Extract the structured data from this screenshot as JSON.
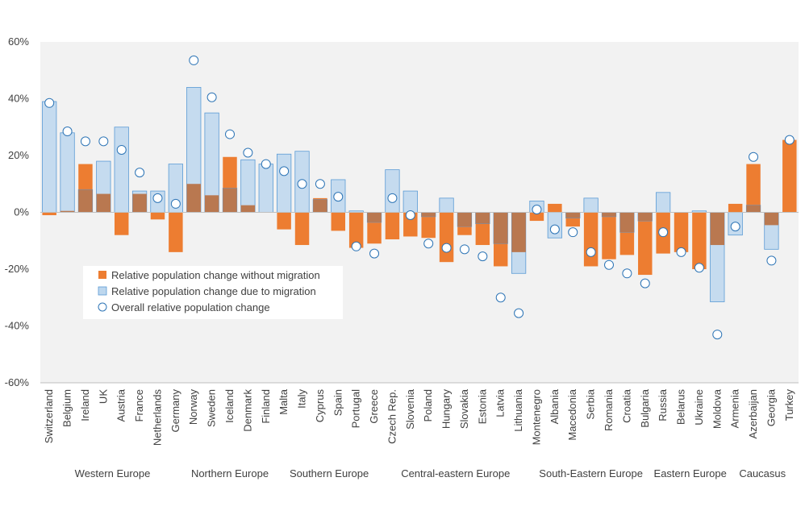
{
  "chart_data": {
    "type": "bar",
    "title": "",
    "xlabel": "",
    "ylabel": "",
    "ylim": [
      -60,
      60
    ],
    "y_ticks": [
      "60%",
      "40%",
      "20%",
      "0%",
      "-20%",
      "-40%",
      "-60%"
    ],
    "y_tick_values": [
      60,
      40,
      20,
      0,
      -20,
      -40,
      -60
    ],
    "categories": [
      "Switzerland",
      "Belgium",
      "Ireland",
      "UK",
      "Austria",
      "France",
      "Netherlands",
      "Germany",
      "Norway",
      "Sweden",
      "Iceland",
      "Denmark",
      "Finland",
      "Malta",
      "Italy",
      "Cyprus",
      "Spain",
      "Portugal",
      "Greece",
      "Czech Rep.",
      "Slovenia",
      "Poland",
      "Hungary",
      "Slovakia",
      "Estonia",
      "Latvia",
      "Lithuania",
      "Montenegro",
      "Albania",
      "Macedonia",
      "Serbia",
      "Romania",
      "Croatia",
      "Bulgaria",
      "Russia",
      "Belarus",
      "Ukraine",
      "Moldova",
      "Armenia",
      "Azerbaijan",
      "Georgia",
      "Turkey"
    ],
    "groups": [
      {
        "name": "Western Europe",
        "count": 8
      },
      {
        "name": "Northern Europe",
        "count": 5
      },
      {
        "name": "Southern Europe",
        "count": 6
      },
      {
        "name": "Central-eastern Europe",
        "count": 8
      },
      {
        "name": "South-Eastern Europe",
        "count": 7
      },
      {
        "name": "Eastern Europe",
        "count": 4
      },
      {
        "name": "Caucasus",
        "count": 4
      }
    ],
    "series": [
      {
        "name": "Relative population change without migration",
        "color": "#ED7D31",
        "values": [
          -1,
          0.5,
          17,
          6.5,
          -8,
          6.5,
          -2.5,
          -14,
          10,
          6,
          19.5,
          2.5,
          0,
          -6,
          -11.5,
          5,
          -6.5,
          -12.5,
          -11,
          -9.5,
          -8.5,
          -9,
          -17.5,
          -8,
          -11.5,
          -19,
          -14,
          -3,
          3,
          -5,
          -19,
          -16.5,
          -15,
          -22,
          -14.5,
          -14,
          -20,
          -11.5,
          3,
          17,
          -4.5,
          25.5
        ]
      },
      {
        "name": "Relative population change due to migration",
        "color": "#BDD7EE",
        "values": [
          39,
          28,
          8,
          18,
          30,
          7.5,
          7.5,
          17,
          44,
          35,
          8.5,
          18.5,
          17,
          20.5,
          21.5,
          4.5,
          11.5,
          0.5,
          -3.5,
          15,
          7.5,
          -1.5,
          5,
          -5,
          -4,
          -11,
          -21.5,
          4,
          -9,
          -2,
          5,
          -1.5,
          -7,
          -3,
          7,
          0,
          0.5,
          -31.5,
          -8,
          2.5,
          -13,
          0
        ]
      },
      {
        "name": "Overall relative population change",
        "color": "#2E75B6",
        "values": [
          38.5,
          28.5,
          25,
          25,
          22,
          14,
          5,
          3,
          53.5,
          40.5,
          27.5,
          21,
          17,
          14.5,
          10,
          10,
          5.5,
          -12,
          -14.5,
          5,
          -1,
          -11,
          -12.5,
          -13,
          -15.5,
          -30,
          -35.5,
          1,
          -6,
          -7,
          -14,
          -18.5,
          -21.5,
          -25,
          -7,
          -14,
          -19.5,
          -43,
          -5,
          19.5,
          -17,
          25.5
        ]
      }
    ],
    "legend": {
      "placement": "center-left",
      "items": [
        "Relative population change without migration",
        "Relative population change due to migration",
        "Overall relative population change"
      ]
    }
  },
  "colors": {
    "plot_background": "#F2F2F2",
    "orange": "#ED7D31",
    "blue_fill": "#BDD7EE",
    "blue_stroke": "#5B9BD5",
    "overlap": "#B97850",
    "marker_stroke": "#2E75B6",
    "axis": "#BFBFBF",
    "text": "#404040"
  }
}
